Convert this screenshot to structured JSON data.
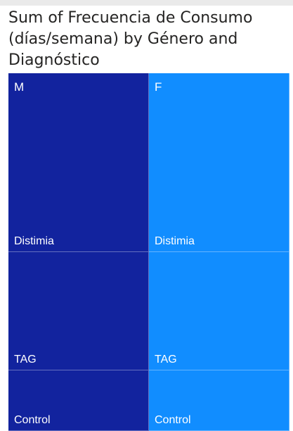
{
  "chart_data": {
    "type": "treemap",
    "title": "Sum of Frecuencia de Consumo (días/semana) by Género and Diagnóstico",
    "measure": "Sum of Frecuencia de Consumo (días/semana)",
    "groups": [
      {
        "name": "M",
        "color": "#12239e",
        "children": [
          {
            "name": "Distimia",
            "value": 50
          },
          {
            "name": "TAG",
            "value": 33
          },
          {
            "name": "Control",
            "value": 17
          }
        ]
      },
      {
        "name": "F",
        "color": "#118dff",
        "children": [
          {
            "name": "Distimia",
            "value": 50
          },
          {
            "name": "TAG",
            "value": 33
          },
          {
            "name": "Control",
            "value": 17
          }
        ]
      }
    ]
  }
}
